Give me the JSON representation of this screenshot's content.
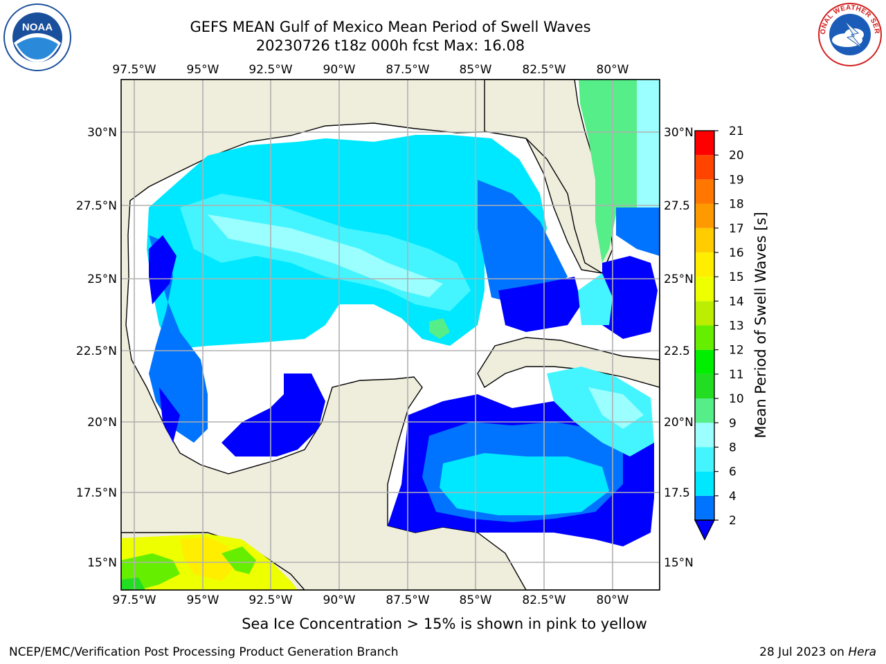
{
  "title": {
    "line1": "GEFS MEAN Gulf of Mexico Mean Period of Swell Waves",
    "line2": "20230726 t18z 000h fcst   Max: 16.08"
  },
  "map": {
    "lon_ticks": [
      "97.5°W",
      "95°W",
      "92.5°W",
      "90°W",
      "87.5°W",
      "85°W",
      "82.5°W",
      "80°W"
    ],
    "lat_ticks": [
      "30°N",
      "27.5°N",
      "25°N",
      "22.5°N",
      "20°N",
      "17.5°N",
      "15°N"
    ],
    "lat_ticks_right": [
      "30°N",
      "27.5",
      "25°N",
      "22.5",
      "20°N",
      "17.5",
      "15°N"
    ],
    "land_color": "#efeddc",
    "water_uncovered_color": "#ffffff"
  },
  "colorbar": {
    "label": "Mean Period of Swell Waves [s]",
    "levels": [
      "2",
      "4",
      "6",
      "8",
      "9",
      "10",
      "11",
      "12",
      "13",
      "14",
      "15",
      "16",
      "17",
      "18",
      "19",
      "20",
      "21"
    ],
    "colors": [
      "#0000ff",
      "#0073ff",
      "#00e8ff",
      "#44f5ff",
      "#9bffff",
      "#55ee88",
      "#22dd22",
      "#00ee00",
      "#66ee00",
      "#bbee00",
      "#eeff00",
      "#ffee00",
      "#ffcc00",
      "#ff9900",
      "#ff7700",
      "#ff4400",
      "#ff0000"
    ]
  },
  "footer": {
    "note": "Sea Ice Concentration > 15% is shown in pink to yellow",
    "credit_left": "NCEP/EMC/Verification Post Processing Product Generation Branch",
    "credit_date": "28 Jul 2023 on",
    "credit_host": "Hera"
  },
  "logos": {
    "noaa": "NOAA",
    "nws": "NATIONAL WEATHER SERVICE"
  }
}
